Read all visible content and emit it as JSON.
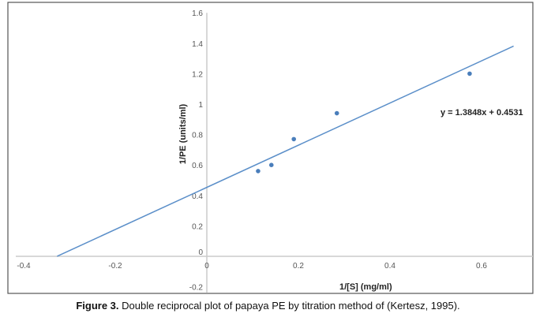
{
  "chart_data": {
    "type": "scatter",
    "xlabel": "1/[S] (mg/ml)",
    "ylabel": "1/PE (units/ml)",
    "xlim": [
      -0.4,
      0.7
    ],
    "ylim": [
      -0.2,
      1.6
    ],
    "xticks": [
      "-0.4",
      "-0.2",
      "0",
      "0.2",
      "0.4",
      "0.6"
    ],
    "yticks": [
      "-0.2",
      "0",
      "0.2",
      "0.4",
      "0.6",
      "0.8",
      "1",
      "1.2",
      "1.4",
      "1.6"
    ],
    "series": [
      {
        "name": "data",
        "x": [
          0.112,
          0.141,
          0.19,
          0.284,
          0.574
        ],
        "y": [
          0.56,
          0.6,
          0.77,
          0.94,
          1.2
        ]
      }
    ],
    "trendline": {
      "slope": 1.3848,
      "intercept": 0.4531,
      "x_range": [
        -0.327,
        0.67
      ],
      "label": "y = 1.3848x + 0.4531"
    },
    "grid": false,
    "colors": {
      "series": "#4a7ebb",
      "line": "#5b8fc9"
    }
  },
  "caption": {
    "prefix": "Figure 3.",
    "text": " Double reciprocal plot of papaya PE by titration method of (Kertesz, 1995)."
  }
}
